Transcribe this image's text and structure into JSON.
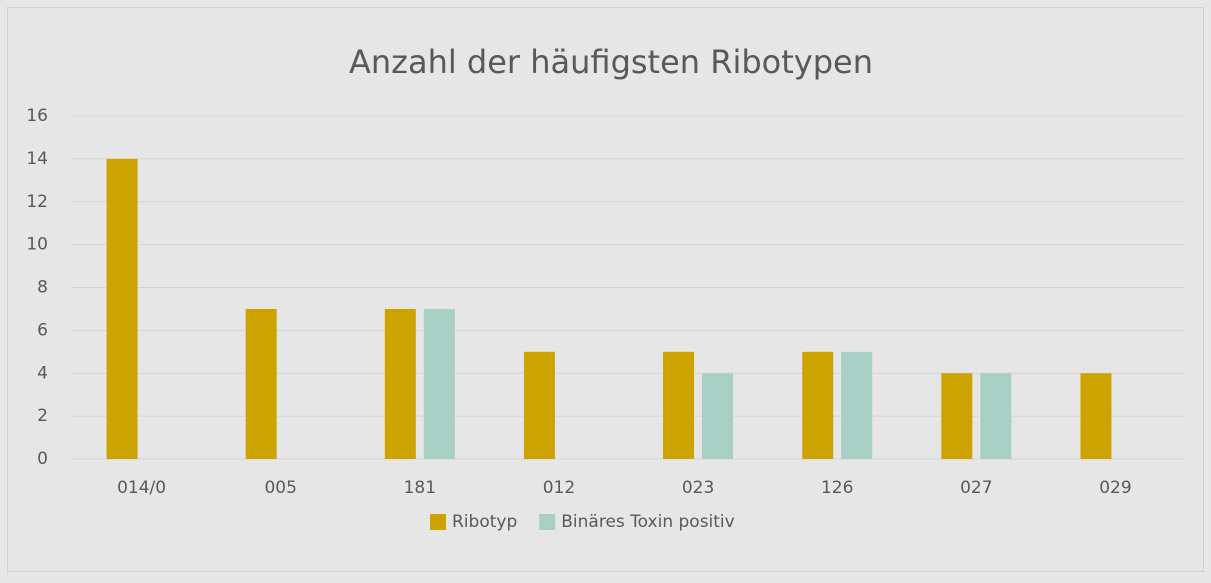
{
  "chart_data": {
    "type": "bar",
    "title": "Anzahl der häufigsten Ribotypen",
    "categories": [
      "014/0",
      "005",
      "181",
      "012",
      "023",
      "126",
      "027",
      "029"
    ],
    "series": [
      {
        "name": "Ribotyp",
        "color": "#cca300",
        "values": [
          14,
          7,
          7,
          5,
          5,
          5,
          4,
          4
        ]
      },
      {
        "name": "Binäres Toxin positiv",
        "color": "#a8cfc4",
        "values": [
          null,
          null,
          7,
          null,
          4,
          5,
          4,
          null
        ]
      }
    ],
    "ylim": [
      0,
      16
    ],
    "yticks": [
      0,
      2,
      4,
      6,
      8,
      10,
      12,
      14,
      16
    ],
    "grid": true,
    "legend": "bottom"
  }
}
